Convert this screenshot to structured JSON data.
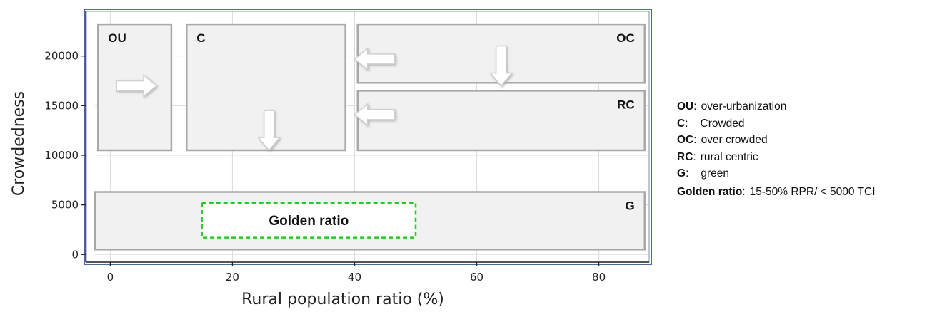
{
  "chart_data": {
    "type": "diagram",
    "xlabel": "Rural population ratio (%)",
    "ylabel": "Crowdedness",
    "xlim": [
      -2.5,
      88
    ],
    "ylim": [
      -700,
      24500
    ],
    "x_ticks": [
      0,
      20,
      40,
      60,
      80
    ],
    "y_ticks": [
      0,
      5000,
      10000,
      15000,
      20000
    ],
    "grid": true,
    "zones": [
      {
        "key": "OU",
        "x0": -2,
        "x1": 10,
        "y0": 10500,
        "y1": 23200,
        "label": "OU",
        "label_pos": "top-left"
      },
      {
        "key": "C",
        "x0": 12.5,
        "x1": 38.5,
        "y0": 10500,
        "y1": 23200,
        "label": "C",
        "label_pos": "top-left"
      },
      {
        "key": "OC",
        "x0": 40.5,
        "x1": 87.5,
        "y0": 17300,
        "y1": 23200,
        "label": "OC",
        "label_pos": "top-right"
      },
      {
        "key": "RC",
        "x0": 40.5,
        "x1": 87.5,
        "y0": 10500,
        "y1": 16500,
        "label": "RC",
        "label_pos": "top-right"
      },
      {
        "key": "G",
        "x0": -2.5,
        "x1": 87.5,
        "y0": 500,
        "y1": 6300,
        "label": "G",
        "label_pos": "top-right"
      }
    ],
    "golden_ratio_box": {
      "x0": 15,
      "x1": 50,
      "y0": 1700,
      "y1": 5200,
      "label": "Golden ratio"
    },
    "arrows": [
      {
        "direction": "right",
        "x": 4.3,
        "y": 17000
      },
      {
        "direction": "down",
        "x": 26,
        "y": 12500
      },
      {
        "direction": "left",
        "x": 43.3,
        "y": 19700
      },
      {
        "direction": "down",
        "x": 64,
        "y": 19000
      },
      {
        "direction": "left",
        "x": 43.3,
        "y": 14100
      }
    ]
  },
  "legend": [
    {
      "key": "OU",
      "sep": ":",
      "text": "over-urbanization"
    },
    {
      "key": "C",
      "sep": ":",
      "text": "Crowded"
    },
    {
      "key": "OC",
      "sep": ":",
      "text": "over crowded"
    },
    {
      "key": "RC",
      "sep": ":",
      "text": "rural centric"
    },
    {
      "key": "G",
      "sep": ":",
      "text": "green"
    },
    {
      "key": "Golden ratio",
      "sep": ":",
      "text": "15-50% RPR/ < 5000 TCI"
    }
  ],
  "colors": {
    "zone_fill": "#f1f1f1",
    "zone_stroke": "#a8a8a8",
    "grid": "#dcdcdc",
    "frame_outer": "#3a5a8c",
    "golden_dash": "#22cc22",
    "arrow_fill": "#ffffff",
    "arrow_stroke": "#cfcfcf"
  }
}
